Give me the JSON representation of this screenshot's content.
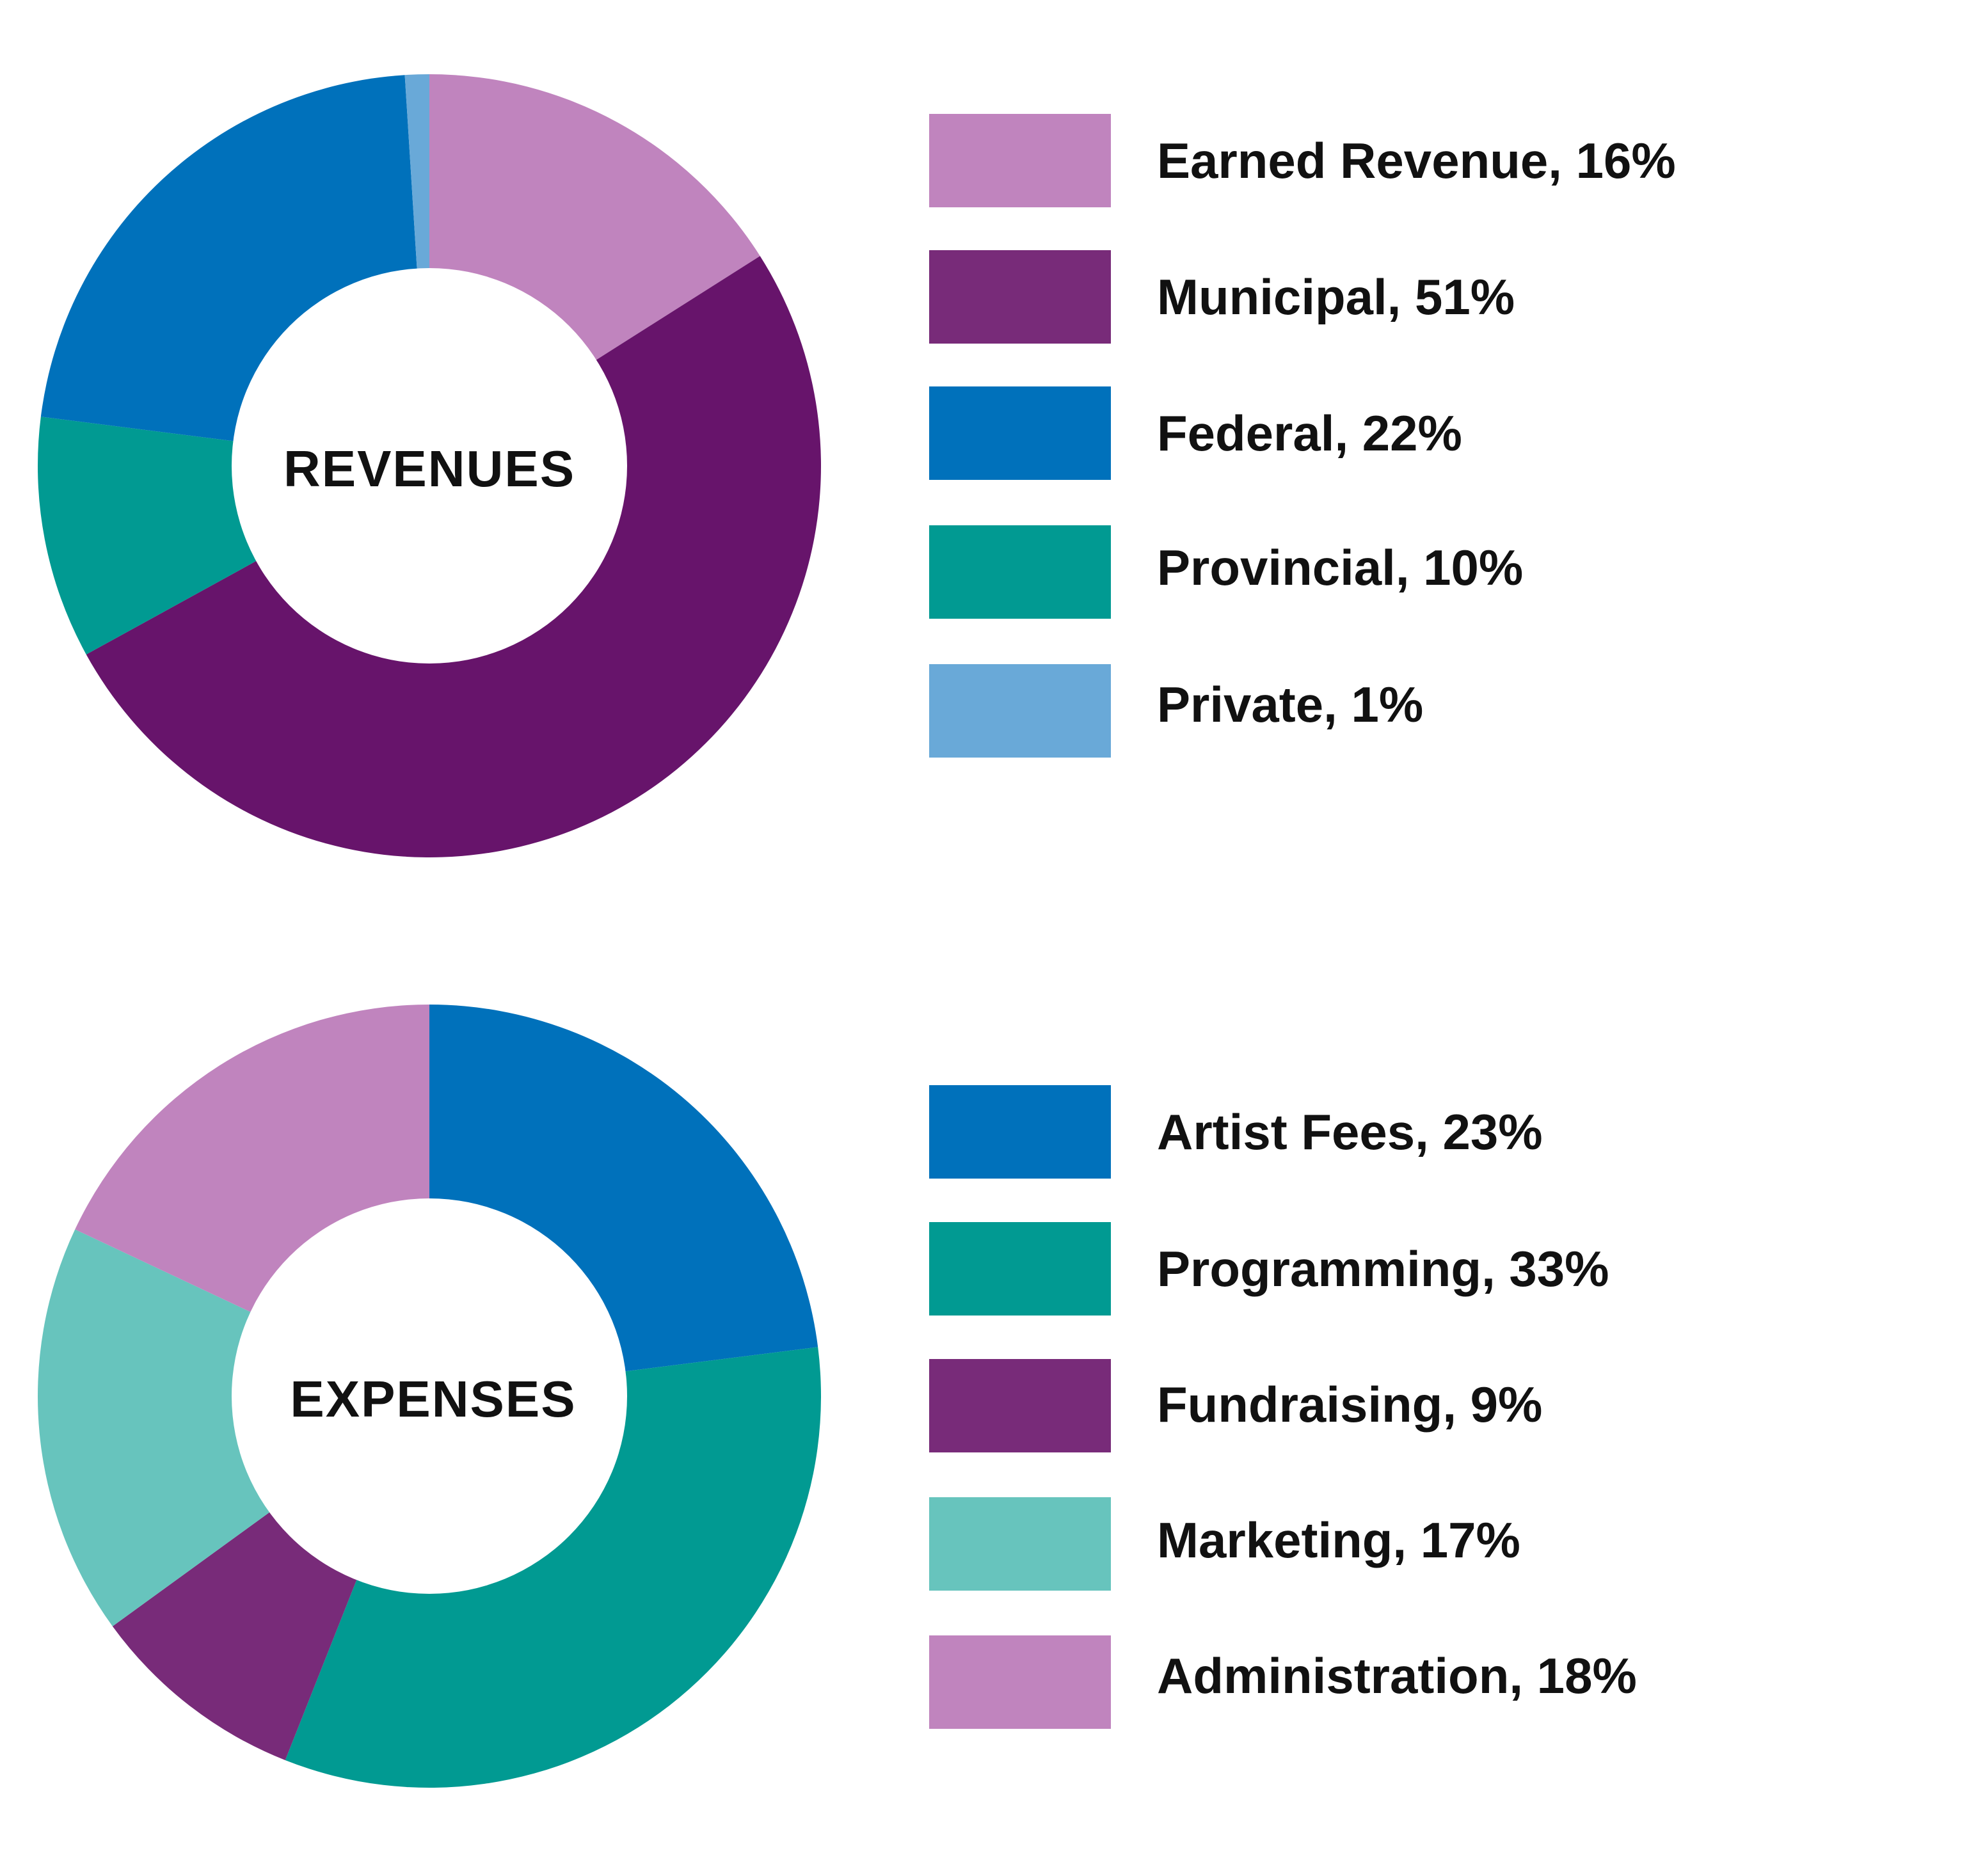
{
  "chart_data": [
    {
      "type": "pie",
      "variant": "donut",
      "center_label": "REVENUES",
      "slices": [
        {
          "label": "Earned Revenue, 16%",
          "name": "Earned Revenue",
          "value": 16,
          "color": "#c084be"
        },
        {
          "label": "Municipal, 51%",
          "name": "Municipal",
          "value": 51,
          "color": "#67146b"
        },
        {
          "label": "Provincial, 10%",
          "name": "Provincial",
          "value": 10,
          "color": "#019a92"
        },
        {
          "label": "Federal, 22%",
          "name": "Federal",
          "value": 22,
          "color": "#0071bb"
        },
        {
          "label": "Private, 1%",
          "name": "Private",
          "value": 1,
          "color": "#69a9d8"
        }
      ],
      "legend": [
        {
          "label": "Earned Revenue, 16%",
          "color": "#c084be"
        },
        {
          "label": "Municipal, 51%",
          "color": "#782b79"
        },
        {
          "label": "Federal, 22%",
          "color": "#0071bb"
        },
        {
          "label": "Provincial, 10%",
          "color": "#019a92"
        },
        {
          "label": "Private, 1%",
          "color": "#69a9d8"
        }
      ],
      "legend_position": "right"
    },
    {
      "type": "pie",
      "variant": "donut",
      "center_label": "EXPENSES",
      "slices": [
        {
          "label": "Artist Fees, 23%",
          "name": "Artist Fees",
          "value": 23,
          "color": "#0071bb"
        },
        {
          "label": "Programming, 33%",
          "name": "Programming",
          "value": 33,
          "color": "#019a92"
        },
        {
          "label": "Fundraising, 9%",
          "name": "Fundraising",
          "value": 9,
          "color": "#782b79"
        },
        {
          "label": "Marketing, 17%",
          "name": "Marketing",
          "value": 17,
          "color": "#67c4bd"
        },
        {
          "label": "Administration, 18%",
          "name": "Administration",
          "value": 18,
          "color": "#c084be"
        }
      ],
      "legend": [
        {
          "label": "Artist Fees, 23%",
          "color": "#0071bb"
        },
        {
          "label": "Programming, 33%",
          "color": "#019a92"
        },
        {
          "label": "Fundraising, 9%",
          "color": "#782b79"
        },
        {
          "label": "Marketing, 17%",
          "color": "#67c4bd"
        },
        {
          "label": "Administration, 18%",
          "color": "#c084be"
        }
      ],
      "legend_position": "right"
    }
  ]
}
